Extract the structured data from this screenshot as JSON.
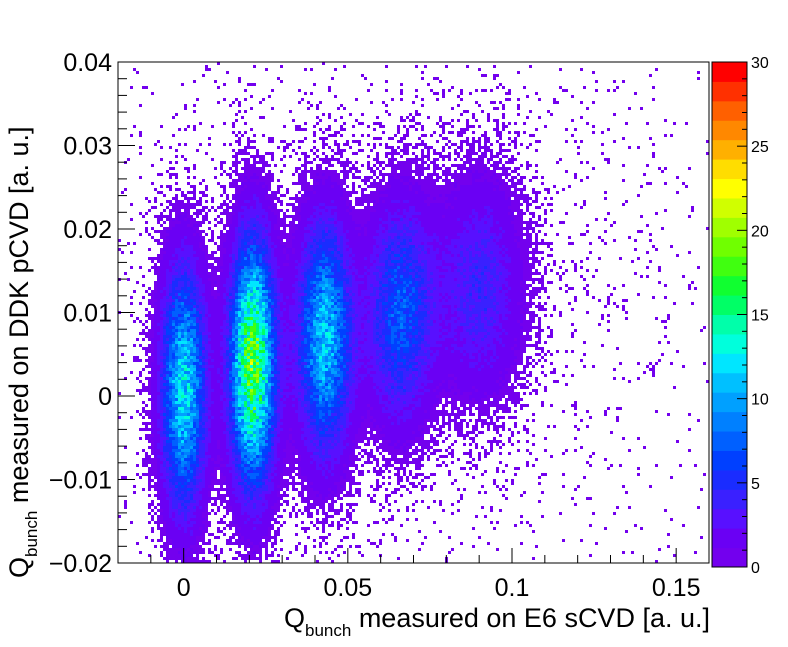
{
  "chart_data": {
    "type": "heatmap",
    "title": "",
    "xlabel": {
      "main": "Q",
      "sub": "bunch",
      "rest": " measured on E6 sCVD [a. u.]"
    },
    "ylabel": {
      "main": "Q",
      "sub": "bunch",
      "rest": " measured on DDK pCVD [a. u.]"
    },
    "xlim": [
      -0.02,
      0.16
    ],
    "ylim": [
      -0.02,
      0.04
    ],
    "x_ticks": [
      {
        "value": 0,
        "label": "0"
      },
      {
        "value": 0.05,
        "label": "0.05"
      },
      {
        "value": 0.1,
        "label": "0.1"
      },
      {
        "value": 0.15,
        "label": "0.15"
      }
    ],
    "y_ticks": [
      {
        "value": -0.02,
        "label": "−0.02"
      },
      {
        "value": -0.01,
        "label": "−0.01"
      },
      {
        "value": 0,
        "label": "0"
      },
      {
        "value": 0.01,
        "label": "0.01"
      },
      {
        "value": 0.02,
        "label": "0.02"
      },
      {
        "value": 0.03,
        "label": "0.03"
      },
      {
        "value": 0.04,
        "label": "0.04"
      }
    ],
    "z_range": [
      0,
      30
    ],
    "z_ticks": [
      {
        "value": 0,
        "label": "0"
      },
      {
        "value": 5,
        "label": "5"
      },
      {
        "value": 10,
        "label": "10"
      },
      {
        "value": 15,
        "label": "15"
      },
      {
        "value": 20,
        "label": "20"
      },
      {
        "value": 25,
        "label": "25"
      },
      {
        "value": 30,
        "label": "30"
      }
    ],
    "colorbar_colors": [
      "#7300ee",
      "#6a00f4",
      "#5810ff",
      "#3a20ff",
      "#1a2cff",
      "#0040ff",
      "#0060ff",
      "#0080ff",
      "#00a0ff",
      "#00c0ff",
      "#00e6ff",
      "#00ffdc",
      "#00ffaa",
      "#00ff66",
      "#10ff30",
      "#40ff10",
      "#70ff00",
      "#a0ff00",
      "#d0ff00",
      "#ffff00",
      "#ffdd00",
      "#ffb000",
      "#ff8800",
      "#ff6000",
      "#ff3000",
      "#ff0000"
    ],
    "clusters": [
      {
        "x": 0.0,
        "y": 0.001,
        "sx": 0.0045,
        "sy": 0.0095,
        "peak": 12
      },
      {
        "x": 0.021,
        "y": 0.004,
        "sx": 0.0045,
        "sy": 0.0095,
        "peak": 18
      },
      {
        "x": 0.043,
        "y": 0.007,
        "sx": 0.0055,
        "sy": 0.009,
        "peak": 11
      },
      {
        "x": 0.066,
        "y": 0.01,
        "sx": 0.0065,
        "sy": 0.0085,
        "peak": 7
      },
      {
        "x": 0.09,
        "y": 0.013,
        "sx": 0.0085,
        "sy": 0.0085,
        "peak": 4
      }
    ],
    "grid": false,
    "legend": "colorbar-right"
  }
}
